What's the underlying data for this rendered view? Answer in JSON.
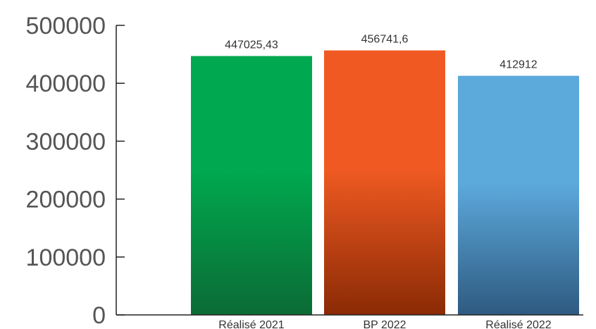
{
  "chart_data": {
    "type": "bar",
    "categories": [
      "Réalisé 2021",
      "BP 2022",
      "Réalisé 2022"
    ],
    "values": [
      447025.43,
      456741.6,
      412912
    ],
    "data_labels": [
      "447025,43",
      "456741,6",
      "412912"
    ],
    "yticks": [
      0,
      100000,
      200000,
      300000,
      400000,
      500000
    ],
    "ylim": [
      0,
      500000
    ],
    "grid": false,
    "legend": "none",
    "colors": [
      {
        "top": "#00a84f",
        "bottom": "#0b6b35"
      },
      {
        "top": "#f05a22",
        "bottom": "#8a2a05"
      },
      {
        "top": "#5ca9dc",
        "bottom": "#2e5a80"
      }
    ]
  }
}
